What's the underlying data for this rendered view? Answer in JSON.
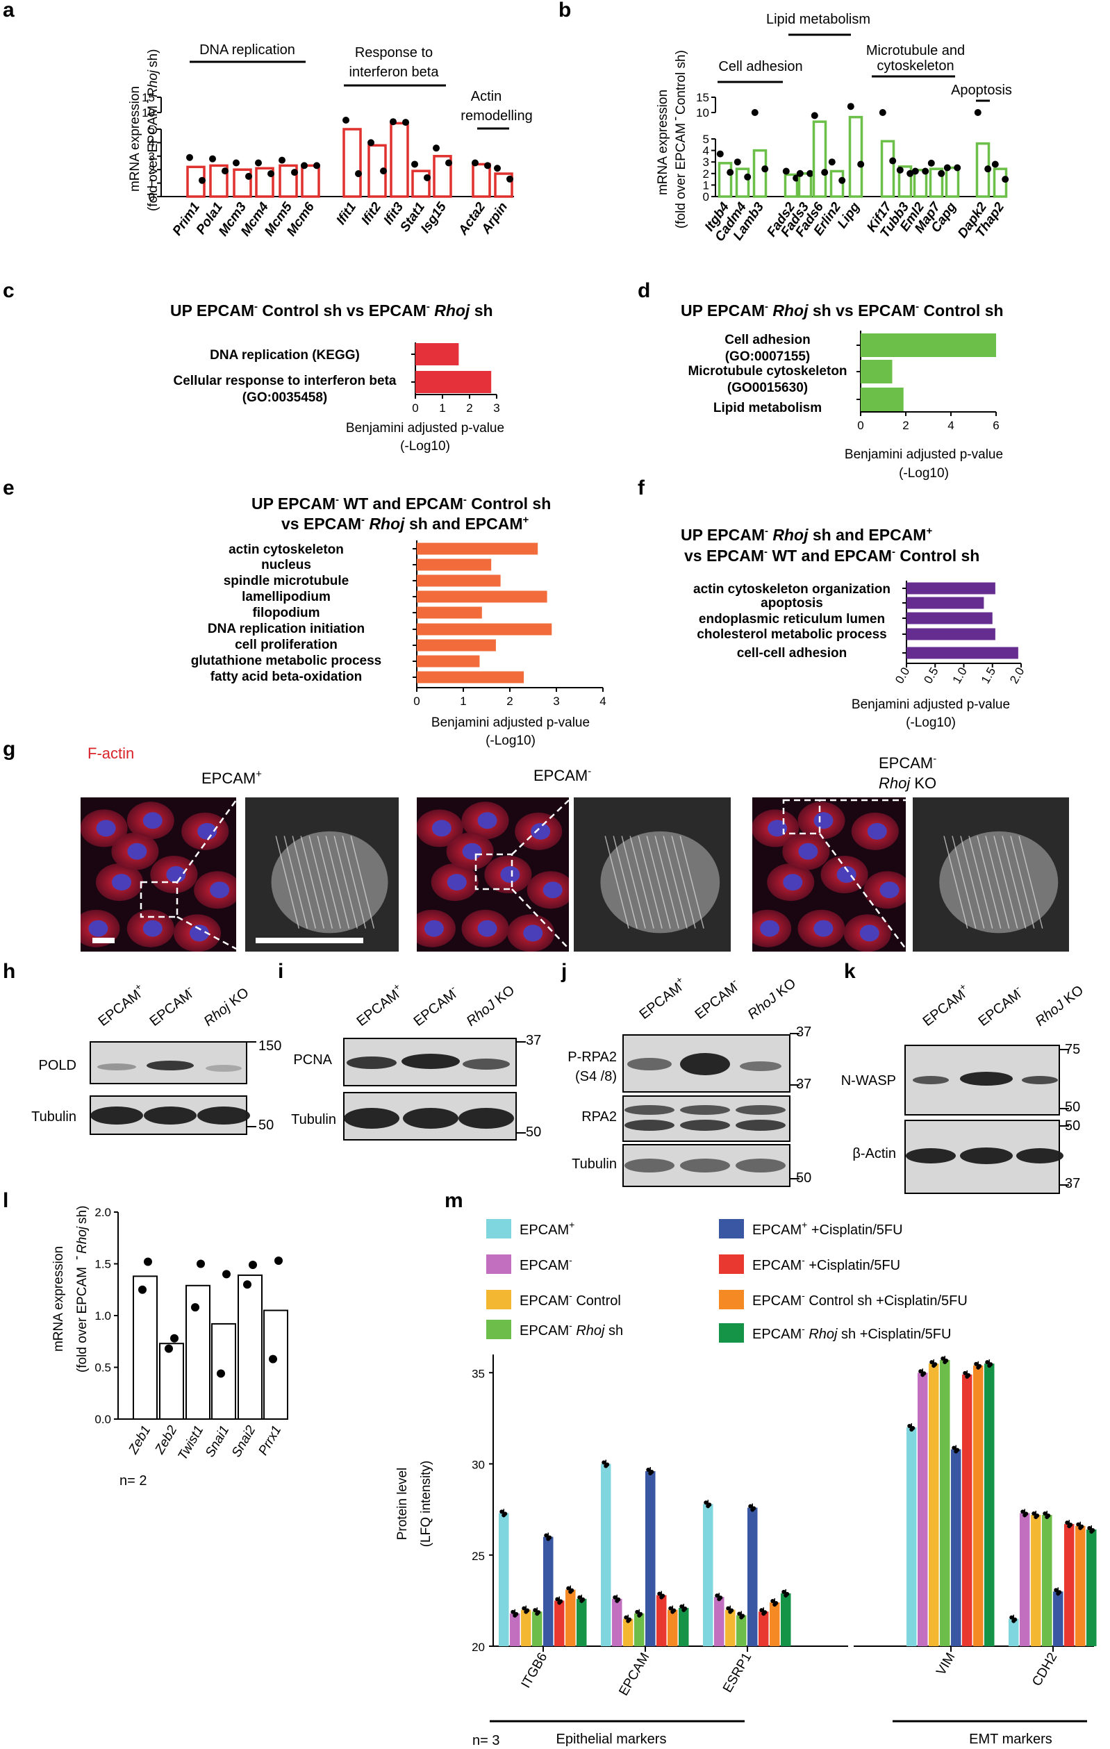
{
  "panels": {
    "a": {
      "letter": "a",
      "ylabel_1": "mRNA expression",
      "ylabel_2": "(fold over EPCAM",
      "ylabel_sup": "-",
      "ylabel_gene": "Rhoj",
      "ylabel_end": "sh)",
      "groups": [
        "DNA replication",
        "Response to",
        "interferon beta",
        "Actin",
        "remodelling"
      ],
      "ticks": [
        "0",
        "1",
        "2",
        "3",
        "4",
        "5",
        "10",
        "15"
      ]
    },
    "b": {
      "letter": "b",
      "ylabel_1": "mRNA expression",
      "ylabel_2": "(fold over EPCAM",
      "ylabel_sup": "-",
      "ylabel_end": "Control sh)",
      "groups": [
        "Cell adhesion",
        "Lipid metabolism",
        "Microtubule and",
        "cytoskeleton",
        "Apoptosis"
      ],
      "ticks": [
        "0",
        "1",
        "2",
        "3",
        "4",
        "5",
        "10",
        "15"
      ]
    },
    "c": {
      "letter": "c",
      "title_1": "UP EPCAM",
      "title_2": "Control sh vs EPCAM",
      "title_gene": "Rhoj",
      "title_3": "sh",
      "sup": "-",
      "xlabel_1": "Benjamini adjusted p-value",
      "xlabel_2": "(-Log10)"
    },
    "d": {
      "letter": "d",
      "title_1": "UP EPCAM",
      "title_gene": "Rhoj",
      "title_2": "sh vs EPCAM",
      "title_3": "Control sh",
      "sup": "-",
      "xlabel_1": "Benjamini adjusted p-value",
      "xlabel_2": "(-Log10)"
    },
    "e": {
      "letter": "e",
      "title_1": "UP EPCAM",
      "title_2": "WT and EPCAM",
      "title_3": "Control sh",
      "title_4": "vs EPCAM",
      "title_gene": "Rhoj",
      "title_5": "sh and EPCAM",
      "sup_minus": "-",
      "sup_plus": "+",
      "xlabel_1": "Benjamini adjusted p-value",
      "xlabel_2": "(-Log10)"
    },
    "f": {
      "letter": "f",
      "title_1": "UP EPCAM",
      "title_gene": "Rhoj",
      "title_2": "sh and EPCAM",
      "title_3": "vs EPCAM",
      "title_4": "WT and EPCAM",
      "title_5": "Control sh",
      "sup_minus": "-",
      "sup_plus": "+",
      "xlabel_1": "Benjamini adjusted p-value",
      "xlabel_2": "(-Log10)"
    },
    "g": {
      "letter": "g",
      "stain": "F-actin",
      "col1": "EPCAM",
      "col1_sup": "+",
      "col2": "EPCAM",
      "col2_sup": "-",
      "col3": "EPCAM",
      "col3_sup": "-",
      "col3_gene": "Rhoj",
      "col3_ko": "KO"
    },
    "h": {
      "letter": "h",
      "lanes": [
        "EPCAM",
        "EPCAM",
        "Rhoj KO"
      ],
      "sups": [
        "+",
        "-",
        ""
      ],
      "rows": [
        "POLD",
        "Tubulin"
      ],
      "markers": [
        "150",
        "50"
      ]
    },
    "i": {
      "letter": "i",
      "lanes": [
        "EPCAM",
        "EPCAM",
        "RhoJ KO"
      ],
      "sups": [
        "+",
        "-",
        ""
      ],
      "rows": [
        "PCNA",
        "Tubulin"
      ],
      "markers": [
        "37",
        "50"
      ]
    },
    "j": {
      "letter": "j",
      "lanes": [
        "EPCAM",
        "EPCAM",
        "RhoJ KO"
      ],
      "sups": [
        "+",
        "-",
        ""
      ],
      "rows": [
        "P-RPA2",
        "(S4 /8)",
        "RPA2",
        "Tubulin"
      ],
      "markers": [
        "37",
        "37",
        "50"
      ]
    },
    "k": {
      "letter": "k",
      "lanes": [
        "EPCAM",
        "EPCAM",
        "RhoJ KO"
      ],
      "sups": [
        "+",
        "-",
        ""
      ],
      "rows": [
        "N-WASP",
        "β-Actin"
      ],
      "markers": [
        "75",
        "50",
        "50",
        "37"
      ]
    },
    "l": {
      "letter": "l",
      "ylabel_1": "mRNA expression",
      "ylabel_2": "(fold  over EPCAM",
      "ylabel_sup": "-",
      "ylabel_gene": "Rhoj",
      "ylabel_end": "sh)",
      "n": "n= 2"
    },
    "m": {
      "letter": "m",
      "legend": [
        {
          "label": "EPCAM",
          "sup": "+",
          "rest": "",
          "color": "#7fd6de"
        },
        {
          "label": "EPCAM",
          "sup": "-",
          "rest": "",
          "color": "#c26fbf"
        },
        {
          "label": "EPCAM",
          "sup": "-",
          "rest": " Control",
          "color": "#f4b731"
        },
        {
          "label": "EPCAM",
          "sup": "-",
          "rest": " Rhoj sh",
          "color": "#6dbd4a"
        },
        {
          "label": "EPCAM",
          "sup": "+",
          "rest": " +Cisplatin/5FU",
          "color": "#3a57a4"
        },
        {
          "label": "EPCAM",
          "sup": "-",
          "rest": " +Cisplatin/5FU",
          "color": "#e8382f"
        },
        {
          "label": "EPCAM",
          "sup": "-",
          "rest": " Control sh +Cisplatin/5FU",
          "color": "#f58a25"
        },
        {
          "label": "EPCAM",
          "sup": "-",
          "rest": " Rhoj sh +Cisplatin/5FU",
          "color": "#159447"
        }
      ],
      "ylabel_1": "Protein level",
      "ylabel_2": "(LFQ intensity)",
      "group1": "Epithelial markers",
      "group2": "EMT markers",
      "n": "n= 3"
    }
  },
  "chart_data": [
    {
      "panel": "a",
      "type": "bar",
      "title": "",
      "ylabel": "mRNA expression (fold over EPCAM- Rhoj sh)",
      "categories": [
        "Prim1",
        "Pola1",
        "Mcm3",
        "Mcm4",
        "Mcm5",
        "Mcm6",
        "Ifit1",
        "Ifit2",
        "Ifit3",
        "Stat1",
        "Isg15",
        "Acta2",
        "Arpin"
      ],
      "values": [
        2.2,
        2.3,
        2.0,
        2.1,
        2.3,
        2.3,
        5.0,
        3.8,
        6.5,
        1.9,
        3.0,
        2.4,
        1.7
      ],
      "points": [
        [
          2.9,
          1.2
        ],
        [
          2.8,
          1.9
        ],
        [
          2.5,
          1.5
        ],
        [
          2.5,
          1.7
        ],
        [
          2.7,
          1.8
        ],
        [
          2.3,
          2.3
        ],
        [
          7.5,
          1.7
        ],
        [
          4.0,
          1.9
        ],
        [
          7.0,
          6.8
        ],
        [
          2.4,
          1.4
        ],
        [
          3.6,
          2.5
        ],
        [
          2.5,
          2.3
        ],
        [
          2.1,
          1.3
        ]
      ],
      "ylim": [
        0,
        15
      ],
      "axis_break": [
        5,
        10
      ],
      "color": "#e0312f"
    },
    {
      "panel": "b",
      "type": "bar",
      "title": "",
      "ylabel": "mRNA expression (fold over EPCAM- Control sh)",
      "categories": [
        "Itgb4",
        "Cadm4",
        "Lamb3",
        "Fads2",
        "Fads3",
        "Fads6",
        "Erlin2",
        "Lipg",
        "Kif17",
        "Tubb3",
        "Eml2",
        "Map7",
        "Capg",
        "Dapk2",
        "Thap2"
      ],
      "values": [
        2.9,
        2.4,
        4.0,
        1.9,
        2.0,
        7.0,
        2.2,
        8.5,
        4.8,
        2.6,
        2.3,
        2.4,
        2.5,
        4.6,
        2.4
      ],
      "points": [
        [
          3.7,
          2.1
        ],
        [
          3.0,
          1.7
        ],
        [
          10.0,
          2.4
        ],
        [
          2.2,
          1.6
        ],
        [
          2.0,
          2.0
        ],
        [
          9.0,
          2.1
        ],
        [
          3.0,
          1.4
        ],
        [
          12.0,
          2.8
        ],
        [
          10.0,
          3.1
        ],
        [
          2.3,
          2.0
        ],
        [
          2.2,
          2.2
        ],
        [
          2.9,
          2.0
        ],
        [
          2.5,
          2.5
        ],
        [
          10.0,
          2.4
        ],
        [
          2.8,
          1.5
        ]
      ],
      "ylim": [
        0,
        15
      ],
      "axis_break": [
        5,
        10
      ],
      "color": "#6cc04a"
    },
    {
      "panel": "c",
      "type": "bar",
      "orientation": "horizontal",
      "categories": [
        "DNA replication (KEGG)",
        "Cellular response to interferon beta (GO:0035458)"
      ],
      "values": [
        1.6,
        2.8
      ],
      "xlim": [
        0,
        3
      ],
      "xticks": [
        "0",
        "1",
        "2",
        "3"
      ],
      "xlabel": "Benjamini adjusted p-value (-Log10)",
      "color": "#e5313a"
    },
    {
      "panel": "d",
      "type": "bar",
      "orientation": "horizontal",
      "categories": [
        "Cell adhesion (GO:0007155)",
        "Microtubule cytoskeleton (GO0015630)",
        "Lipid metabolism"
      ],
      "values": [
        6.0,
        1.4,
        1.9
      ],
      "xlim": [
        0,
        6
      ],
      "xticks": [
        "0",
        "2",
        "4",
        "6"
      ],
      "xlabel": "Benjamini adjusted p-value (-Log10)",
      "color": "#6cc04a"
    },
    {
      "panel": "e",
      "type": "bar",
      "orientation": "horizontal",
      "categories": [
        "actin cytoskeleton",
        "nucleus",
        "spindle microtubule",
        "lamellipodium",
        "filopodium",
        "DNA replication initiation",
        "cell proliferation",
        "glutathione metabolic process",
        "fatty acid beta-oxidation"
      ],
      "values": [
        2.6,
        1.6,
        1.8,
        2.8,
        1.4,
        2.9,
        1.7,
        1.35,
        2.3
      ],
      "xlim": [
        0,
        4
      ],
      "xticks": [
        "0",
        "1",
        "2",
        "3",
        "4"
      ],
      "xlabel": "Benjamini adjusted p-value (-Log10)",
      "color": "#f26b3a"
    },
    {
      "panel": "f",
      "type": "bar",
      "orientation": "horizontal",
      "categories": [
        "actin cytoskeleton organization",
        "apoptosis",
        "endoplasmic reticulum lumen",
        "cholesterol metabolic process",
        "cell-cell adhesion"
      ],
      "values": [
        1.55,
        1.35,
        1.5,
        1.55,
        1.95
      ],
      "xlim": [
        0,
        2
      ],
      "xticks": [
        "0.0",
        "0.5",
        "1.0",
        "1.5",
        "2.0"
      ],
      "xlabel": "Benjamini adjusted p-value (-Log10)",
      "color": "#652d90"
    },
    {
      "panel": "l",
      "type": "bar",
      "title": "",
      "ylabel": "mRNA expression (fold over EPCAM- Rhoj sh)",
      "categories": [
        "Zeb1",
        "Zeb2",
        "Twist1",
        "Snai1",
        "Snai2",
        "Prrx1"
      ],
      "values": [
        1.38,
        0.73,
        1.29,
        0.92,
        1.39,
        1.05
      ],
      "points": [
        [
          1.52,
          1.25
        ],
        [
          0.78,
          0.68
        ],
        [
          1.5,
          1.08
        ],
        [
          1.4,
          0.44
        ],
        [
          1.49,
          1.3
        ],
        [
          1.53,
          0.58
        ]
      ],
      "ylim": [
        0,
        2.0
      ],
      "yticks": [
        "0.0",
        "0.5",
        "1.0",
        "1.5",
        "2.0"
      ]
    },
    {
      "panel": "m",
      "type": "bar",
      "title": "",
      "ylabel": "Protein level (LFQ intensity)",
      "categories": [
        "ITGB6",
        "EPCAM",
        "ESRP1",
        "VIM",
        "CDH2"
      ],
      "series": [
        {
          "name": "EPCAM+",
          "values": [
            27.3,
            30.0,
            27.8,
            32.0,
            21.5
          ]
        },
        {
          "name": "EPCAM-",
          "values": [
            21.8,
            22.6,
            22.7,
            35.0,
            27.3
          ]
        },
        {
          "name": "EPCAM- Control",
          "values": [
            22.0,
            21.5,
            22.0,
            35.5,
            27.2
          ]
        },
        {
          "name": "EPCAM- Rhoj sh",
          "values": [
            21.9,
            21.8,
            21.7,
            35.7,
            27.2
          ]
        },
        {
          "name": "EPCAM+ +Cisplatin/5FU",
          "values": [
            26.0,
            29.6,
            27.6,
            30.8,
            23.0
          ]
        },
        {
          "name": "EPCAM- +Cisplatin/5FU",
          "values": [
            22.5,
            22.8,
            21.9,
            34.9,
            26.7
          ]
        },
        {
          "name": "EPCAM- Control sh +Cisplatin/5FU",
          "values": [
            23.1,
            22.0,
            22.4,
            35.4,
            26.6
          ]
        },
        {
          "name": "EPCAM- Rhoj sh +Cisplatin/5FU",
          "values": [
            22.6,
            22.1,
            22.9,
            35.5,
            26.4
          ]
        }
      ],
      "ylim": [
        20,
        36
      ],
      "yticks": [
        "20",
        "25",
        "30",
        "35"
      ]
    }
  ]
}
